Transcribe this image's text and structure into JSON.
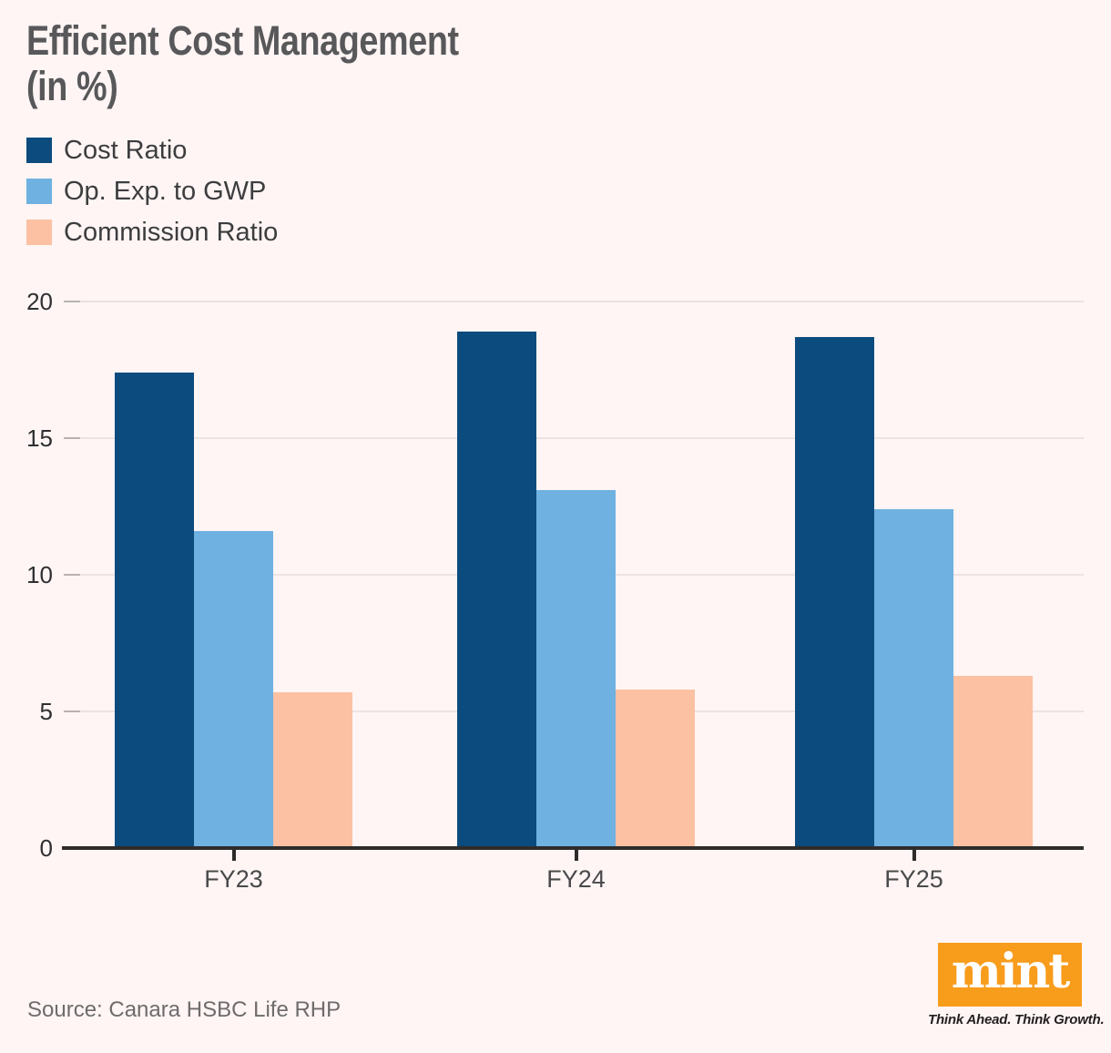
{
  "title": {
    "line1": "Efficient Cost Management",
    "line2": "(in %)"
  },
  "chart_data": {
    "type": "bar",
    "title": "Efficient Cost Management (in %)",
    "categories": [
      "FY23",
      "FY24",
      "FY25"
    ],
    "series": [
      {
        "name": "Cost Ratio",
        "color": "#0C4B7E",
        "values": [
          17.4,
          18.9,
          18.7
        ]
      },
      {
        "name": "Op. Exp. to GWP",
        "color": "#6FB1E1",
        "values": [
          11.6,
          13.1,
          12.4
        ]
      },
      {
        "name": "Commission Ratio",
        "color": "#FBC1A2",
        "values": [
          5.7,
          5.8,
          6.3
        ]
      }
    ],
    "xlabel": "",
    "ylabel": "",
    "ylim": [
      0,
      20
    ],
    "yticks": [
      0,
      5,
      10,
      15,
      20
    ],
    "grid": true,
    "legend_position": "top-left"
  },
  "source": {
    "label": "Source: Canara HSBC Life RHP"
  },
  "branding": {
    "logo_text": "mint",
    "tagline": "Think Ahead. Think Growth.",
    "logo_color": "#F89C1C"
  },
  "colors": {
    "background": "#FEF5F4",
    "title_text": "#58585A",
    "legend_text": "#3D3D3F",
    "y_axis_text": "#2F2F31",
    "x_axis_text": "#4A4A4C",
    "gridline": "#EAE4E3",
    "tick_stub": "#B9B2B1",
    "axis_line": "#2D2C2B",
    "source_text": "#6F6B6C"
  }
}
